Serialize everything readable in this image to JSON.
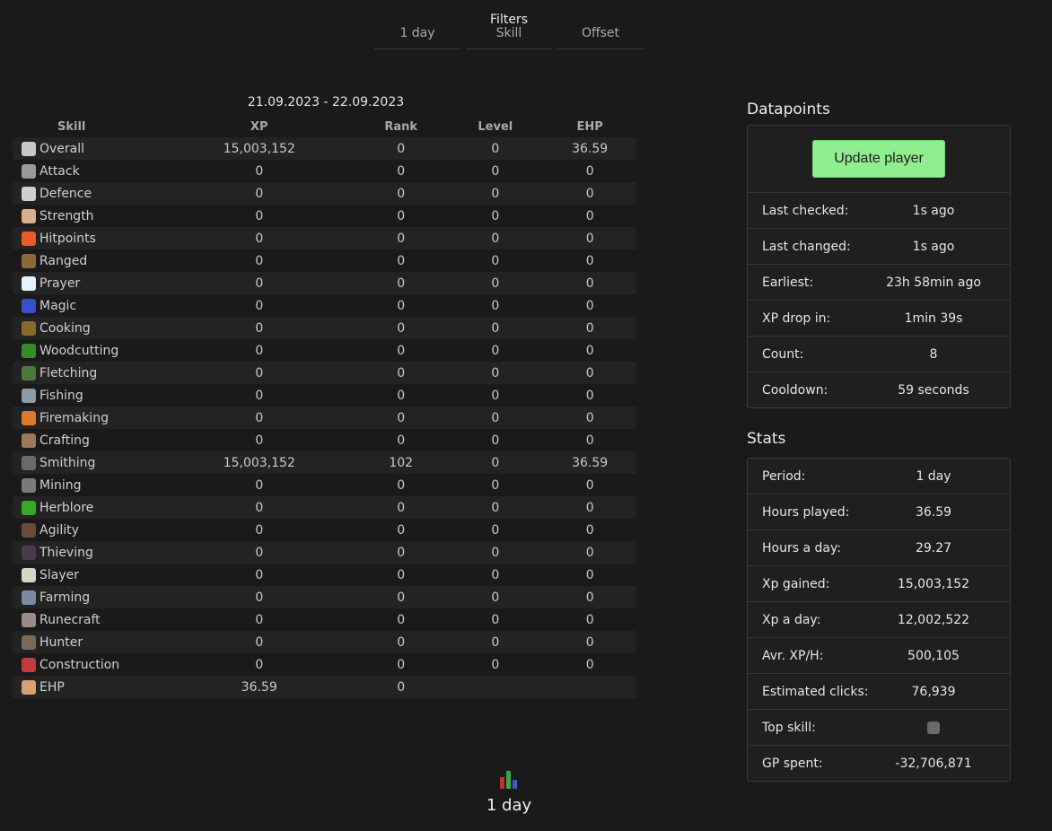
{
  "filters": {
    "title": "Filters",
    "tabs": [
      "1 day",
      "Skill",
      "Offset"
    ]
  },
  "table": {
    "date_range": "21.09.2023 - 22.09.2023",
    "headers": {
      "skill": "Skill",
      "xp": "XP",
      "rank": "Rank",
      "level": "Level",
      "ehp": "EHP"
    },
    "rows": [
      {
        "skill": "Overall",
        "icon": "overall-icon",
        "color": "#c8c8c8",
        "xp": "15,003,152",
        "rank": "0",
        "level": "0",
        "ehp": "36.59",
        "xp_green": true,
        "ehp_green": true
      },
      {
        "skill": "Attack",
        "icon": "attack-icon",
        "color": "#9a9a9a",
        "xp": "0",
        "rank": "0",
        "level": "0",
        "ehp": "0"
      },
      {
        "skill": "Defence",
        "icon": "defence-icon",
        "color": "#cfcfcf",
        "xp": "0",
        "rank": "0",
        "level": "0",
        "ehp": "0"
      },
      {
        "skill": "Strength",
        "icon": "strength-icon",
        "color": "#d9b08c",
        "xp": "0",
        "rank": "0",
        "level": "0",
        "ehp": "0"
      },
      {
        "skill": "Hitpoints",
        "icon": "hitpoints-icon",
        "color": "#e85b2a",
        "xp": "0",
        "rank": "0",
        "level": "0",
        "ehp": "0"
      },
      {
        "skill": "Ranged",
        "icon": "ranged-icon",
        "color": "#8a6a3a",
        "xp": "0",
        "rank": "0",
        "level": "0",
        "ehp": "0"
      },
      {
        "skill": "Prayer",
        "icon": "prayer-icon",
        "color": "#e6f2ff",
        "xp": "0",
        "rank": "0",
        "level": "0",
        "ehp": "0"
      },
      {
        "skill": "Magic",
        "icon": "magic-icon",
        "color": "#3a4fd0",
        "xp": "0",
        "rank": "0",
        "level": "0",
        "ehp": "0"
      },
      {
        "skill": "Cooking",
        "icon": "cooking-icon",
        "color": "#8a6a2a",
        "xp": "0",
        "rank": "0",
        "level": "0",
        "ehp": "0"
      },
      {
        "skill": "Woodcutting",
        "icon": "woodcutting-icon",
        "color": "#3a8a2a",
        "xp": "0",
        "rank": "0",
        "level": "0",
        "ehp": "0"
      },
      {
        "skill": "Fletching",
        "icon": "fletching-icon",
        "color": "#4a7a3a",
        "xp": "0",
        "rank": "0",
        "level": "0",
        "ehp": "0"
      },
      {
        "skill": "Fishing",
        "icon": "fishing-icon",
        "color": "#8a9aa6",
        "xp": "0",
        "rank": "0",
        "level": "0",
        "ehp": "0"
      },
      {
        "skill": "Firemaking",
        "icon": "firemaking-icon",
        "color": "#e07a2a",
        "xp": "0",
        "rank": "0",
        "level": "0",
        "ehp": "0"
      },
      {
        "skill": "Crafting",
        "icon": "crafting-icon",
        "color": "#9a7a5a",
        "xp": "0",
        "rank": "0",
        "level": "0",
        "ehp": "0"
      },
      {
        "skill": "Smithing",
        "icon": "smithing-icon",
        "color": "#6a6a6a",
        "xp": "15,003,152",
        "rank": "102",
        "level": "0",
        "ehp": "36.59",
        "xp_green": true,
        "rank_green": true,
        "ehp_green": true
      },
      {
        "skill": "Mining",
        "icon": "mining-icon",
        "color": "#7a7a7a",
        "xp": "0",
        "rank": "0",
        "level": "0",
        "ehp": "0"
      },
      {
        "skill": "Herblore",
        "icon": "herblore-icon",
        "color": "#3aa62a",
        "xp": "0",
        "rank": "0",
        "level": "0",
        "ehp": "0"
      },
      {
        "skill": "Agility",
        "icon": "agility-icon",
        "color": "#6a4a3a",
        "xp": "0",
        "rank": "0",
        "level": "0",
        "ehp": "0"
      },
      {
        "skill": "Thieving",
        "icon": "thieving-icon",
        "color": "#4a3a4a",
        "xp": "0",
        "rank": "0",
        "level": "0",
        "ehp": "0"
      },
      {
        "skill": "Slayer",
        "icon": "slayer-icon",
        "color": "#d6d6c6",
        "xp": "0",
        "rank": "0",
        "level": "0",
        "ehp": "0"
      },
      {
        "skill": "Farming",
        "icon": "farming-icon",
        "color": "#7a8aa0",
        "xp": "0",
        "rank": "0",
        "level": "0",
        "ehp": "0"
      },
      {
        "skill": "Runecraft",
        "icon": "runecraft-icon",
        "color": "#9a8a8a",
        "xp": "0",
        "rank": "0",
        "level": "0",
        "ehp": "0"
      },
      {
        "skill": "Hunter",
        "icon": "hunter-icon",
        "color": "#7a6a5a",
        "xp": "0",
        "rank": "0",
        "level": "0",
        "ehp": "0"
      },
      {
        "skill": "Construction",
        "icon": "construction-icon",
        "color": "#c43a3a",
        "xp": "0",
        "rank": "0",
        "level": "0",
        "ehp": "0"
      },
      {
        "skill": "EHP",
        "icon": "hourglass-icon",
        "color": "#d6a070",
        "xp": "36.59",
        "rank": "0",
        "level": "",
        "ehp": "",
        "xp_green": true
      }
    ]
  },
  "datapoints": {
    "title": "Datapoints",
    "update_button": "Update player",
    "rows": [
      {
        "label": "Last checked:",
        "value": "1s ago"
      },
      {
        "label": "Last changed:",
        "value": "1s ago"
      },
      {
        "label": "Earliest:",
        "value": "23h 58min ago"
      },
      {
        "label": "XP drop in:",
        "value": "1min 39s"
      },
      {
        "label": "Count:",
        "value": "8"
      },
      {
        "label": "Cooldown:",
        "value": "59 seconds"
      }
    ]
  },
  "stats": {
    "title": "Stats",
    "rows": [
      {
        "label": "Period:",
        "value": "1 day"
      },
      {
        "label": "Hours played:",
        "value": "36.59"
      },
      {
        "label": "Hours a day:",
        "value": "29.27"
      },
      {
        "label": "Xp gained:",
        "value": "15,003,152"
      },
      {
        "label": "Xp a day:",
        "value": "12,002,522"
      },
      {
        "label": "Avr. XP/H:",
        "value": "500,105"
      },
      {
        "label": "Estimated clicks:",
        "value": "76,939"
      },
      {
        "label": "Top skill:",
        "value": "",
        "icon": "smithing-icon"
      },
      {
        "label": "GP spent:",
        "value": "-32,706,871"
      }
    ]
  },
  "footer": {
    "chart_icon": "bar-chart-icon",
    "label": "1 day"
  },
  "colors": {
    "background": "#1a1a1a",
    "positive": "#3df53d",
    "button": "#90ee90"
  }
}
